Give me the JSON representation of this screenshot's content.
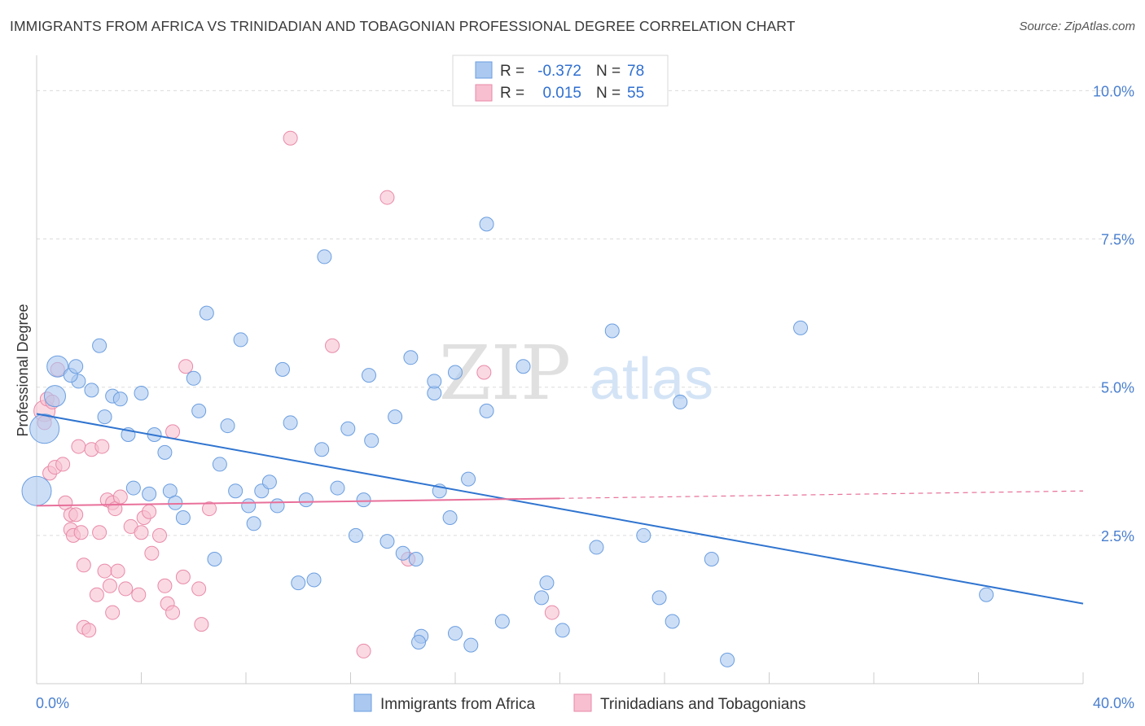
{
  "title": "IMMIGRANTS FROM AFRICA VS TRINIDADIAN AND TOBAGONIAN PROFESSIONAL DEGREE CORRELATION CHART",
  "source": "Source: ZipAtlas.com",
  "watermark": {
    "zip": "ZIP",
    "atlas": "atlas"
  },
  "colors": {
    "blue_fill": "#aac8f0",
    "blue_stroke": "#6b9ee0",
    "blue_line": "#2f74d0",
    "pink_fill": "#f7bfd0",
    "pink_stroke": "#e98aa8",
    "pink_line": "#e8709a",
    "axis_text": "#4a7fcf",
    "grid": "#dcdcdc"
  },
  "legend": {
    "rows": [
      {
        "r_label": "R =",
        "r_value": "-0.372",
        "n_label": "N =",
        "n_value": "78"
      },
      {
        "r_label": "R =",
        "r_value": "0.015",
        "n_label": "N =",
        "n_value": "55"
      }
    ]
  },
  "chart_data": {
    "type": "scatter",
    "title": "IMMIGRANTS FROM AFRICA VS TRINIDADIAN AND TOBAGONIAN PROFESSIONAL DEGREE CORRELATION CHART",
    "xlabel": "",
    "ylabel": "Professional Degree",
    "xlim": [
      0,
      40
    ],
    "ylim": [
      0,
      10.5
    ],
    "x_tick_labels": [
      "0.0%",
      "40.0%"
    ],
    "y_ticks": [
      2.5,
      5.0,
      7.5,
      10.0
    ],
    "y_tick_labels": [
      "2.5%",
      "5.0%",
      "7.5%",
      "10.0%"
    ],
    "grid": true,
    "legend_position": "bottom",
    "series": [
      {
        "name": "Immigrants from Africa",
        "trend": {
          "x": [
            0,
            40
          ],
          "y": [
            4.55,
            1.35
          ],
          "dashed_from": null
        },
        "points": [
          {
            "x": 0.3,
            "y": 4.3,
            "s": 3
          },
          {
            "x": 0.0,
            "y": 3.25,
            "s": 3
          },
          {
            "x": 0.8,
            "y": 5.35,
            "s": 2
          },
          {
            "x": 1.6,
            "y": 5.1,
            "s": 1
          },
          {
            "x": 1.3,
            "y": 5.2,
            "s": 1
          },
          {
            "x": 1.5,
            "y": 5.35,
            "s": 1
          },
          {
            "x": 2.1,
            "y": 4.95,
            "s": 1
          },
          {
            "x": 0.7,
            "y": 4.85,
            "s": 2
          },
          {
            "x": 2.4,
            "y": 5.7,
            "s": 1
          },
          {
            "x": 2.6,
            "y": 4.5,
            "s": 1
          },
          {
            "x": 2.9,
            "y": 4.85,
            "s": 1
          },
          {
            "x": 3.2,
            "y": 4.8,
            "s": 1
          },
          {
            "x": 3.5,
            "y": 4.2,
            "s": 1
          },
          {
            "x": 3.7,
            "y": 3.3,
            "s": 1
          },
          {
            "x": 4.0,
            "y": 4.9,
            "s": 1
          },
          {
            "x": 4.3,
            "y": 3.2,
            "s": 1
          },
          {
            "x": 4.5,
            "y": 4.2,
            "s": 1
          },
          {
            "x": 4.9,
            "y": 3.9,
            "s": 1
          },
          {
            "x": 5.1,
            "y": 3.25,
            "s": 1
          },
          {
            "x": 5.3,
            "y": 3.05,
            "s": 1
          },
          {
            "x": 5.6,
            "y": 2.8,
            "s": 1
          },
          {
            "x": 6.0,
            "y": 5.15,
            "s": 1
          },
          {
            "x": 6.2,
            "y": 4.6,
            "s": 1
          },
          {
            "x": 6.5,
            "y": 6.25,
            "s": 1
          },
          {
            "x": 6.8,
            "y": 2.1,
            "s": 1
          },
          {
            "x": 7.0,
            "y": 3.7,
            "s": 1
          },
          {
            "x": 7.3,
            "y": 4.35,
            "s": 1
          },
          {
            "x": 7.6,
            "y": 3.25,
            "s": 1
          },
          {
            "x": 7.8,
            "y": 5.8,
            "s": 1
          },
          {
            "x": 8.1,
            "y": 3.0,
            "s": 1
          },
          {
            "x": 8.3,
            "y": 2.7,
            "s": 1
          },
          {
            "x": 8.6,
            "y": 3.25,
            "s": 1
          },
          {
            "x": 8.9,
            "y": 3.4,
            "s": 1
          },
          {
            "x": 9.2,
            "y": 3.0,
            "s": 1
          },
          {
            "x": 9.4,
            "y": 5.3,
            "s": 1
          },
          {
            "x": 9.7,
            "y": 4.4,
            "s": 1
          },
          {
            "x": 10.0,
            "y": 1.7,
            "s": 1
          },
          {
            "x": 10.3,
            "y": 3.1,
            "s": 1
          },
          {
            "x": 10.6,
            "y": 1.75,
            "s": 1
          },
          {
            "x": 10.9,
            "y": 3.95,
            "s": 1
          },
          {
            "x": 11.0,
            "y": 7.2,
            "s": 1
          },
          {
            "x": 11.5,
            "y": 3.3,
            "s": 1
          },
          {
            "x": 11.9,
            "y": 4.3,
            "s": 1
          },
          {
            "x": 12.2,
            "y": 2.5,
            "s": 1
          },
          {
            "x": 12.5,
            "y": 3.1,
            "s": 1
          },
          {
            "x": 12.7,
            "y": 5.2,
            "s": 1
          },
          {
            "x": 12.8,
            "y": 4.1,
            "s": 1
          },
          {
            "x": 13.4,
            "y": 2.4,
            "s": 1
          },
          {
            "x": 13.7,
            "y": 4.5,
            "s": 1
          },
          {
            "x": 14.0,
            "y": 2.2,
            "s": 1
          },
          {
            "x": 14.3,
            "y": 5.5,
            "s": 1
          },
          {
            "x": 14.5,
            "y": 2.1,
            "s": 1
          },
          {
            "x": 14.7,
            "y": 0.8,
            "s": 1
          },
          {
            "x": 14.6,
            "y": 0.7,
            "s": 1
          },
          {
            "x": 15.2,
            "y": 4.9,
            "s": 1
          },
          {
            "x": 15.2,
            "y": 5.1,
            "s": 1
          },
          {
            "x": 15.4,
            "y": 3.25,
            "s": 1
          },
          {
            "x": 15.8,
            "y": 2.8,
            "s": 1
          },
          {
            "x": 16.0,
            "y": 0.85,
            "s": 1
          },
          {
            "x": 16.0,
            "y": 5.25,
            "s": 1
          },
          {
            "x": 16.5,
            "y": 3.45,
            "s": 1
          },
          {
            "x": 16.6,
            "y": 0.65,
            "s": 1
          },
          {
            "x": 17.2,
            "y": 4.6,
            "s": 1
          },
          {
            "x": 17.2,
            "y": 7.75,
            "s": 1
          },
          {
            "x": 17.8,
            "y": 1.05,
            "s": 1
          },
          {
            "x": 18.6,
            "y": 5.35,
            "s": 1
          },
          {
            "x": 19.3,
            "y": 1.45,
            "s": 1
          },
          {
            "x": 19.5,
            "y": 1.7,
            "s": 1
          },
          {
            "x": 20.1,
            "y": 0.9,
            "s": 1
          },
          {
            "x": 21.4,
            "y": 2.3,
            "s": 1
          },
          {
            "x": 22.0,
            "y": 5.95,
            "s": 1
          },
          {
            "x": 23.2,
            "y": 2.5,
            "s": 1
          },
          {
            "x": 23.8,
            "y": 1.45,
            "s": 1
          },
          {
            "x": 24.3,
            "y": 1.05,
            "s": 1
          },
          {
            "x": 24.6,
            "y": 4.75,
            "s": 1
          },
          {
            "x": 25.8,
            "y": 2.1,
            "s": 1
          },
          {
            "x": 26.4,
            "y": 0.4,
            "s": 1
          },
          {
            "x": 29.2,
            "y": 6.0,
            "s": 1
          },
          {
            "x": 36.3,
            "y": 1.5,
            "s": 1
          }
        ]
      },
      {
        "name": "Trinidadians and Tobagonians",
        "trend": {
          "x": [
            0,
            40
          ],
          "y": [
            3.0,
            3.25
          ],
          "dashed_from": 20
        },
        "points": [
          {
            "x": 0.3,
            "y": 4.6,
            "s": 2
          },
          {
            "x": 0.3,
            "y": 4.4,
            "s": 1
          },
          {
            "x": 0.4,
            "y": 4.8,
            "s": 1
          },
          {
            "x": 0.6,
            "y": 4.75,
            "s": 1
          },
          {
            "x": 0.5,
            "y": 3.55,
            "s": 1
          },
          {
            "x": 0.7,
            "y": 3.65,
            "s": 1
          },
          {
            "x": 0.8,
            "y": 5.3,
            "s": 1
          },
          {
            "x": 1.0,
            "y": 3.7,
            "s": 1
          },
          {
            "x": 1.1,
            "y": 3.05,
            "s": 1
          },
          {
            "x": 1.3,
            "y": 2.85,
            "s": 1
          },
          {
            "x": 1.3,
            "y": 2.6,
            "s": 1
          },
          {
            "x": 1.4,
            "y": 2.5,
            "s": 1
          },
          {
            "x": 1.5,
            "y": 2.85,
            "s": 1
          },
          {
            "x": 1.6,
            "y": 4.0,
            "s": 1
          },
          {
            "x": 1.7,
            "y": 2.55,
            "s": 1
          },
          {
            "x": 1.8,
            "y": 2.0,
            "s": 1
          },
          {
            "x": 1.8,
            "y": 0.95,
            "s": 1
          },
          {
            "x": 2.0,
            "y": 0.9,
            "s": 1
          },
          {
            "x": 2.1,
            "y": 3.95,
            "s": 1
          },
          {
            "x": 2.3,
            "y": 1.5,
            "s": 1
          },
          {
            "x": 2.4,
            "y": 2.55,
            "s": 1
          },
          {
            "x": 2.5,
            "y": 4.0,
            "s": 1
          },
          {
            "x": 2.6,
            "y": 1.9,
            "s": 1
          },
          {
            "x": 2.7,
            "y": 3.1,
            "s": 1
          },
          {
            "x": 2.8,
            "y": 1.65,
            "s": 1
          },
          {
            "x": 2.9,
            "y": 3.05,
            "s": 1
          },
          {
            "x": 2.9,
            "y": 1.2,
            "s": 1
          },
          {
            "x": 3.0,
            "y": 2.95,
            "s": 1
          },
          {
            "x": 3.1,
            "y": 1.9,
            "s": 1
          },
          {
            "x": 3.2,
            "y": 3.15,
            "s": 1
          },
          {
            "x": 3.4,
            "y": 1.6,
            "s": 1
          },
          {
            "x": 3.6,
            "y": 2.65,
            "s": 1
          },
          {
            "x": 3.9,
            "y": 1.5,
            "s": 1
          },
          {
            "x": 4.0,
            "y": 2.55,
            "s": 1
          },
          {
            "x": 4.1,
            "y": 2.8,
            "s": 1
          },
          {
            "x": 4.3,
            "y": 2.9,
            "s": 1
          },
          {
            "x": 4.4,
            "y": 2.2,
            "s": 1
          },
          {
            "x": 4.7,
            "y": 2.5,
            "s": 1
          },
          {
            "x": 4.9,
            "y": 1.65,
            "s": 1
          },
          {
            "x": 5.0,
            "y": 1.35,
            "s": 1
          },
          {
            "x": 5.2,
            "y": 1.2,
            "s": 1
          },
          {
            "x": 5.2,
            "y": 4.25,
            "s": 1
          },
          {
            "x": 5.6,
            "y": 1.8,
            "s": 1
          },
          {
            "x": 5.7,
            "y": 5.35,
            "s": 1
          },
          {
            "x": 6.2,
            "y": 1.6,
            "s": 1
          },
          {
            "x": 6.3,
            "y": 1.0,
            "s": 1
          },
          {
            "x": 6.6,
            "y": 2.95,
            "s": 1
          },
          {
            "x": 9.7,
            "y": 9.2,
            "s": 1
          },
          {
            "x": 11.3,
            "y": 5.7,
            "s": 1
          },
          {
            "x": 12.5,
            "y": 0.55,
            "s": 1
          },
          {
            "x": 13.4,
            "y": 8.2,
            "s": 1
          },
          {
            "x": 14.2,
            "y": 2.1,
            "s": 1
          },
          {
            "x": 17.1,
            "y": 5.25,
            "s": 1
          },
          {
            "x": 19.7,
            "y": 1.2,
            "s": 1
          }
        ]
      }
    ]
  }
}
